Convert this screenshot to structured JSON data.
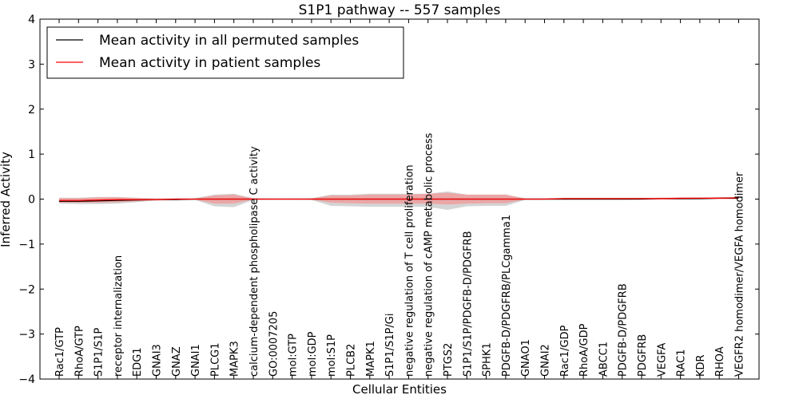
{
  "chart_data": {
    "type": "line",
    "title": "S1P1 pathway -- 557 samples",
    "xlabel": "Cellular Entities",
    "ylabel": "Inferred Activity",
    "ylim": [
      -4,
      4
    ],
    "yticks": [
      -4,
      -3,
      -2,
      -1,
      0,
      1,
      2,
      3,
      4
    ],
    "ytick_labels": [
      "−4",
      "−3",
      "−2",
      "−1",
      "0",
      "1",
      "2",
      "3",
      "4"
    ],
    "grid": false,
    "legend_position": "top-left",
    "categories": [
      "Rac1/GTP",
      "RhoA/GTP",
      "S1P1/S1P",
      "receptor internalization",
      "EDG1",
      "GNAI3",
      "GNAZ",
      "GNAI1",
      "PLCG1",
      "MAPK3",
      "calcium-dependent phospholipase C activity",
      "GO:0007205",
      "mol:GTP",
      "mol:GDP",
      "mol:S1P",
      "PLCB2",
      "MAPK1",
      "S1P1/S1P/Gi",
      "negative regulation of T cell proliferation",
      "negative regulation of cAMP metabolic process",
      "PTGS2",
      "S1P1/S1P/PDGFB-D/PDGFRB",
      "SPHK1",
      "PDGFB-D/PDGFRB/PLCgamma1",
      "GNAO1",
      "GNAI2",
      "Rac1/GDP",
      "RhoA/GDP",
      "ABCC1",
      "PDGFB-D/PDGFRB",
      "PDGFRB",
      "VEGFA",
      "RAC1",
      "KDR",
      "RHOA",
      "VEGFR2 homodimer/VEGFA homodimer"
    ],
    "series": [
      {
        "name": "Mean activity in all permuted samples",
        "color": "#000000",
        "values": [
          -0.05,
          -0.05,
          -0.04,
          -0.03,
          -0.02,
          -0.01,
          -0.01,
          0.0,
          0.0,
          0.0,
          0.0,
          0.0,
          0.0,
          0.0,
          0.0,
          0.0,
          0.0,
          0.0,
          0.0,
          0.0,
          0.0,
          0.0,
          0.0,
          0.0,
          0.0,
          0.0,
          0.0,
          0.0,
          0.0,
          0.0,
          0.0,
          0.01,
          0.01,
          0.01,
          0.02,
          0.02
        ],
        "band_low": [
          -0.1,
          -0.11,
          -0.11,
          -0.1,
          -0.07,
          -0.03,
          -0.02,
          -0.02,
          -0.16,
          -0.18,
          -0.02,
          -0.01,
          -0.01,
          -0.02,
          -0.15,
          -0.16,
          -0.17,
          -0.17,
          -0.17,
          -0.17,
          -0.24,
          -0.16,
          -0.15,
          -0.15,
          -0.02,
          -0.02,
          -0.02,
          -0.02,
          -0.02,
          -0.02,
          -0.01,
          -0.01,
          -0.01,
          -0.01,
          0.0,
          0.0
        ],
        "band_high": [
          0.03,
          0.03,
          0.05,
          0.05,
          0.03,
          0.02,
          0.02,
          0.02,
          0.1,
          0.12,
          0.02,
          0.01,
          0.01,
          0.02,
          0.1,
          0.1,
          0.12,
          0.12,
          0.12,
          0.12,
          0.17,
          0.1,
          0.1,
          0.1,
          0.02,
          0.02,
          0.03,
          0.03,
          0.03,
          0.03,
          0.03,
          0.03,
          0.03,
          0.04,
          0.04,
          0.05
        ]
      },
      {
        "name": "Mean activity in patient samples",
        "color": "#ff0000",
        "values": [
          -0.03,
          -0.03,
          -0.02,
          -0.01,
          -0.01,
          -0.01,
          0.0,
          0.0,
          0.0,
          0.0,
          0.0,
          0.0,
          0.0,
          0.0,
          0.0,
          0.0,
          0.0,
          0.0,
          0.0,
          0.0,
          0.0,
          0.0,
          0.0,
          0.0,
          0.0,
          0.0,
          0.01,
          0.01,
          0.01,
          0.01,
          0.01,
          0.01,
          0.02,
          0.02,
          0.02,
          0.03
        ],
        "band_low": [
          -0.08,
          -0.08,
          -0.08,
          -0.07,
          -0.05,
          -0.02,
          -0.01,
          -0.01,
          -0.1,
          -0.1,
          -0.01,
          -0.01,
          -0.01,
          -0.01,
          -0.08,
          -0.09,
          -0.1,
          -0.1,
          -0.1,
          -0.1,
          -0.12,
          -0.1,
          -0.09,
          -0.09,
          -0.01,
          -0.01,
          -0.01,
          -0.01,
          -0.01,
          -0.01,
          -0.01,
          -0.01,
          -0.01,
          0.0,
          0.0,
          0.0
        ],
        "band_high": [
          0.02,
          0.02,
          0.04,
          0.04,
          0.02,
          0.01,
          0.01,
          0.01,
          0.08,
          0.1,
          0.01,
          0.01,
          0.01,
          0.01,
          0.08,
          0.08,
          0.1,
          0.1,
          0.1,
          0.12,
          0.14,
          0.1,
          0.1,
          0.1,
          0.01,
          0.01,
          0.02,
          0.02,
          0.02,
          0.02,
          0.02,
          0.03,
          0.03,
          0.03,
          0.04,
          0.04
        ]
      }
    ]
  }
}
